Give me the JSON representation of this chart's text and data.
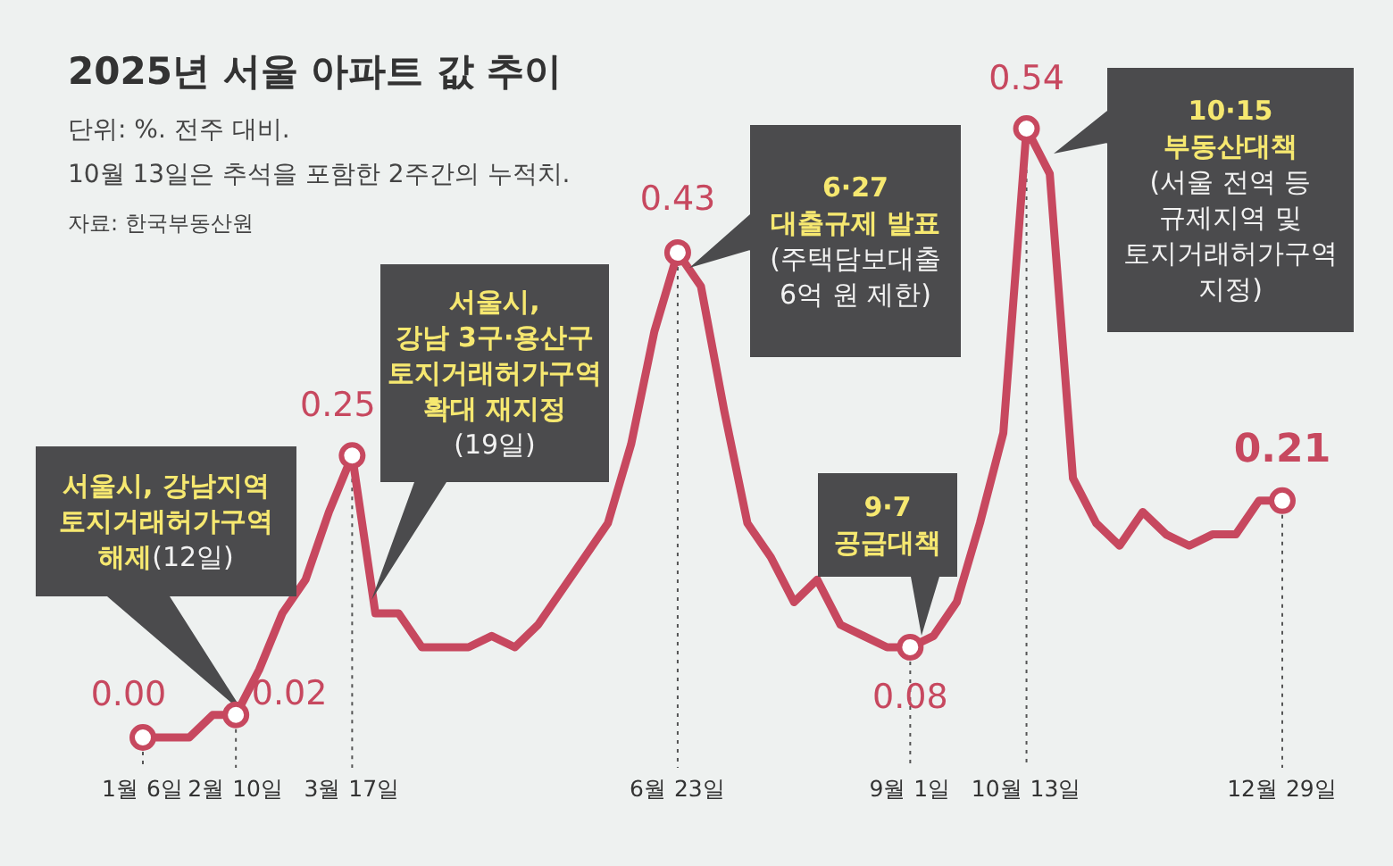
{
  "chart_data": {
    "type": "line",
    "title": "2025년 서울 아파트 값 추이",
    "subtitle": "단위: %. 전주 대비.",
    "categories": [
      "1월 6일",
      null,
      null,
      null,
      "2월 10일",
      null,
      null,
      null,
      null,
      "3월 17일",
      null,
      null,
      null,
      null,
      null,
      null,
      null,
      null,
      null,
      null,
      null,
      null,
      null,
      "6월 23일",
      null,
      null,
      null,
      null,
      null,
      null,
      null,
      null,
      null,
      "9월 1일",
      null,
      null,
      null,
      null,
      "10월 13일",
      null,
      null,
      null,
      null,
      null,
      null,
      null,
      null,
      null,
      null,
      "12월 29일"
    ],
    "series": [
      {
        "color": "#c7485f",
        "values": [
          0.0,
          0.0,
          0.0,
          0.02,
          0.02,
          0.06,
          0.11,
          0.14,
          0.2,
          0.25,
          0.11,
          0.11,
          0.08,
          0.08,
          0.08,
          0.09,
          0.08,
          0.1,
          0.13,
          0.16,
          0.19,
          0.26,
          0.36,
          0.43,
          0.4,
          0.29,
          0.19,
          0.16,
          0.12,
          0.14,
          0.1,
          0.09,
          0.08,
          0.08,
          0.09,
          0.12,
          0.19,
          0.27,
          0.54,
          0.5,
          0.23,
          0.19,
          0.17,
          0.2,
          0.18,
          0.17,
          0.18,
          0.18,
          0.21,
          0.21
        ],
        "value_labels": [
          "0.00",
          null,
          null,
          null,
          "0.02",
          null,
          null,
          null,
          null,
          "0.25",
          null,
          null,
          null,
          null,
          null,
          null,
          null,
          null,
          null,
          null,
          null,
          null,
          null,
          "0.43",
          null,
          null,
          null,
          null,
          null,
          null,
          null,
          null,
          null,
          "0.08",
          null,
          null,
          null,
          null,
          "0.54",
          null,
          null,
          null,
          null,
          null,
          null,
          null,
          null,
          null,
          null,
          "**0.21**"
        ]
      }
    ],
    "annotations": [
      "10월 13일은 추석을 포함한 2주간의 누적치.",
      "자료: 한국부동산원",
      "**서울시, 강남지역**\n**토지거래허가구역**\n**해제**(12일)",
      "**서울시,**\n**강남 3구·용산구**\n**토지거래허가구역**\n**확대 재지정**\n(19일)",
      "**6·27**\n**대출규제 발표**\n(주택담보대출\n6억 원 제한)",
      "**9·7**\n**공급대책**",
      "**10·15**\n**부동산대책**\n(서울 전역 등\n규제지역 및\n토지거래허가구역\n지정)"
    ]
  }
}
